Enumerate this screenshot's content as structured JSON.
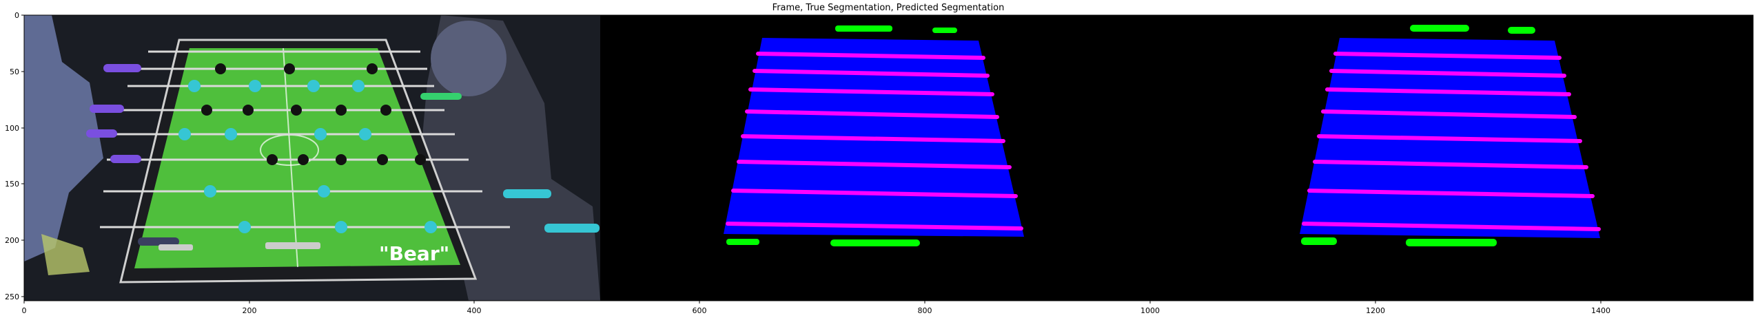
{
  "figure": {
    "title": "Frame, True Segmentation, Predicted Segmentation"
  },
  "axes": {
    "x_ticks": [
      "0",
      "200",
      "400",
      "600",
      "800",
      "1000",
      "1200",
      "1400"
    ],
    "y_ticks": [
      "0",
      "50",
      "100",
      "150",
      "200",
      "250"
    ]
  },
  "panels": [
    {
      "name": "Frame",
      "overlay_text": "\"Bear\""
    },
    {
      "name": "True Segmentation"
    },
    {
      "name": "Predicted Segmentation"
    }
  ],
  "segmentation_colors": {
    "background": "#000000",
    "table": "#0000ff",
    "rods": "#ff00ff",
    "goals": "#00ff00"
  },
  "frame_colors": {
    "field_green": "#4fbf3c",
    "player_cyan": "#36c6d4",
    "player_dark": "#111111",
    "handle_purple": "#7a4fe0"
  }
}
